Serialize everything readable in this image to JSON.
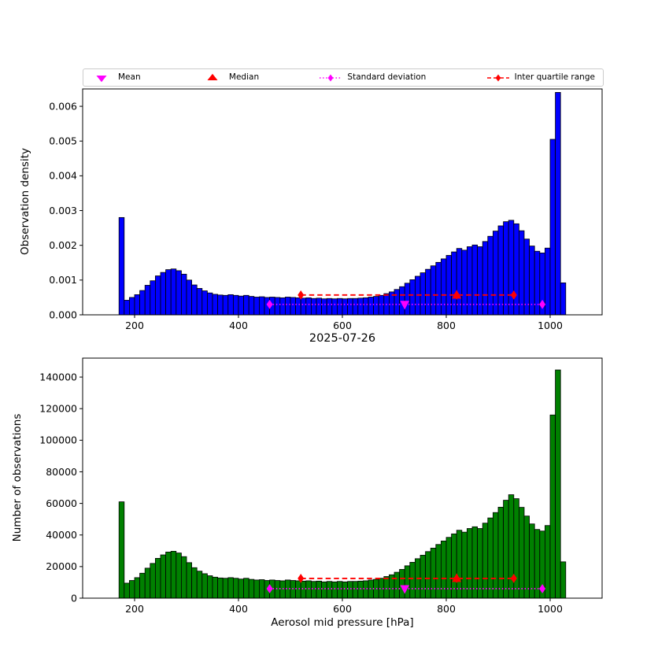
{
  "figure": {
    "date_title": "2025-07-26",
    "background": "#ffffff"
  },
  "legend": {
    "items": [
      {
        "label": "Mean",
        "marker": "triangle-down",
        "color": "#ff00ff"
      },
      {
        "label": "Median",
        "marker": "triangle-up",
        "color": "#ff0000"
      },
      {
        "label": "Standard deviation",
        "marker": "diamond-dotted-line",
        "color": "#ff00ff"
      },
      {
        "label": "Inter quartile range",
        "marker": "diamond-dashed-line",
        "color": "#ff0000"
      }
    ]
  },
  "chart_data": [
    {
      "type": "bar",
      "panel": "top",
      "title": "",
      "xlabel": "",
      "ylabel": "Observation density",
      "bar_color": "#0000ff",
      "bar_edge_color": "#000000",
      "bin_start": 170,
      "bin_width": 10,
      "xlim": [
        100,
        1100
      ],
      "ylim": [
        0,
        0.0065
      ],
      "xticks": [
        200,
        400,
        600,
        800,
        1000
      ],
      "xtick_labels": [
        "200",
        "400",
        "600",
        "800",
        "1000"
      ],
      "yticks": [
        0,
        0.001,
        0.002,
        0.003,
        0.004,
        0.005,
        0.006
      ],
      "ytick_labels": [
        "0.000",
        "0.001",
        "0.002",
        "0.003",
        "0.004",
        "0.005",
        "0.006"
      ],
      "values": [
        0.0028,
        0.00042,
        0.0005,
        0.00058,
        0.0007,
        0.00085,
        0.00098,
        0.00112,
        0.00122,
        0.0013,
        0.00132,
        0.00127,
        0.00117,
        0.001,
        0.00086,
        0.00076,
        0.00069,
        0.00063,
        0.00059,
        0.00057,
        0.00056,
        0.00058,
        0.00056,
        0.00054,
        0.00056,
        0.00053,
        0.00051,
        0.00052,
        0.0005,
        0.00051,
        0.0005,
        0.00049,
        0.00051,
        0.0005,
        0.00049,
        0.00048,
        0.00049,
        0.00047,
        0.00048,
        0.00046,
        0.00047,
        0.00046,
        0.00047,
        0.00046,
        0.00047,
        0.00047,
        0.00048,
        0.00049,
        0.00051,
        0.00053,
        0.00056,
        0.00061,
        0.00066,
        0.00073,
        0.00081,
        0.00091,
        0.00101,
        0.00111,
        0.00121,
        0.00131,
        0.00141,
        0.00151,
        0.00161,
        0.00171,
        0.00181,
        0.00191,
        0.00186,
        0.00196,
        0.00201,
        0.00196,
        0.00211,
        0.00226,
        0.00241,
        0.00256,
        0.00268,
        0.00272,
        0.00262,
        0.00242,
        0.00218,
        0.00198,
        0.00183,
        0.00178,
        0.00192,
        0.00505,
        0.0064,
        0.00092
      ],
      "overlays": {
        "mean": {
          "x": 720,
          "y": 0.0003,
          "color": "#ff00ff"
        },
        "median": {
          "x": 820,
          "y": 0.00057,
          "color": "#ff0000"
        },
        "std_deviation_range": {
          "x1": 460,
          "x2": 985,
          "y": 0.0003,
          "color": "#ff00ff",
          "style": "dotted"
        },
        "inter_quartile_range": {
          "x1": 520,
          "x2": 930,
          "y": 0.00057,
          "color": "#ff0000",
          "style": "dashed"
        }
      }
    },
    {
      "type": "bar",
      "panel": "bottom",
      "title": "",
      "xlabel": "Aerosol mid pressure [hPa]",
      "ylabel": "Number of observations",
      "bar_color": "#008000",
      "bar_edge_color": "#000000",
      "bin_start": 170,
      "bin_width": 10,
      "xlim": [
        100,
        1100
      ],
      "ylim": [
        0,
        152000
      ],
      "xticks": [
        200,
        400,
        600,
        800,
        1000
      ],
      "xtick_labels": [
        "200",
        "400",
        "600",
        "800",
        "1000"
      ],
      "yticks": [
        0,
        20000,
        40000,
        60000,
        80000,
        100000,
        120000,
        140000
      ],
      "ytick_labels": [
        "0",
        "20000",
        "40000",
        "60000",
        "80000",
        "100000",
        "120000",
        "140000"
      ],
      "values": [
        61000,
        9500,
        11200,
        13000,
        15800,
        19000,
        22000,
        25200,
        27400,
        29200,
        29700,
        28600,
        26300,
        22500,
        19300,
        17100,
        15500,
        14200,
        13300,
        12800,
        12600,
        13000,
        12600,
        12100,
        12600,
        11900,
        11500,
        11700,
        11200,
        11500,
        11200,
        11000,
        11500,
        11200,
        11000,
        10800,
        11000,
        10600,
        10800,
        10300,
        10600,
        10300,
        10600,
        10300,
        10600,
        10600,
        10800,
        11000,
        11500,
        11900,
        12600,
        13700,
        14800,
        16400,
        18200,
        20500,
        22700,
        25000,
        27200,
        29500,
        31700,
        34000,
        36200,
        38500,
        40700,
        43000,
        41800,
        44100,
        45200,
        44100,
        47500,
        50800,
        54200,
        57600,
        62000,
        65500,
        63000,
        57500,
        52000,
        47000,
        43500,
        42500,
        46000,
        116000,
        144500,
        23000
      ],
      "overlays": {
        "mean": {
          "x": 720,
          "y": 6000,
          "color": "#ff00ff"
        },
        "median": {
          "x": 820,
          "y": 12500,
          "color": "#ff0000"
        },
        "std_deviation_range": {
          "x1": 460,
          "x2": 985,
          "y": 6000,
          "color": "#ff00ff",
          "style": "dotted"
        },
        "inter_quartile_range": {
          "x1": 520,
          "x2": 930,
          "y": 12500,
          "color": "#ff0000",
          "style": "dashed"
        }
      }
    }
  ]
}
